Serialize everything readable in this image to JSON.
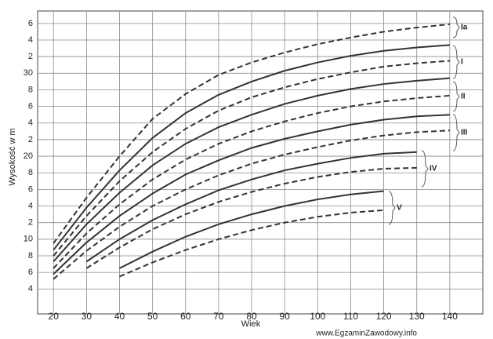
{
  "chart_data": {
    "type": "line",
    "ylabel": "Wysokość w m",
    "xlabel": "Wiek",
    "watermark": "www.EgzaminZawodowy.info",
    "annotations": [
      "Ia",
      "I",
      "II",
      "III",
      "IV",
      "V"
    ],
    "x": [
      20,
      30,
      40,
      50,
      60,
      70,
      80,
      90,
      100,
      110,
      120,
      130,
      140
    ],
    "series": [
      {
        "color": "#333333",
        "dash": true,
        "values": [
          9.5,
          15,
          20,
          24.5,
          27.5,
          29.8,
          31.3,
          32.5,
          33.5,
          34.3,
          35,
          35.5,
          35.9
        ]
      },
      {
        "color": "#333333",
        "dash": false,
        "values": [
          8.7,
          13.8,
          18.3,
          22.2,
          25.2,
          27.4,
          29,
          30.3,
          31.3,
          32.1,
          32.7,
          33.1,
          33.4
        ]
      },
      {
        "color": "#333333",
        "dash": true,
        "values": [
          8,
          12.8,
          17,
          20.5,
          23.3,
          25.5,
          27.1,
          28.3,
          29.3,
          30.1,
          30.8,
          31.2,
          31.5
        ]
      },
      {
        "color": "#333333",
        "dash": false,
        "values": [
          7.3,
          11.8,
          15.6,
          18.9,
          21.5,
          23.5,
          25,
          26.3,
          27.3,
          28.1,
          28.7,
          29.1,
          29.4
        ]
      },
      {
        "color": "#333333",
        "dash": true,
        "values": [
          6.5,
          10.7,
          14.2,
          17.2,
          19.6,
          21.5,
          23,
          24.2,
          25.2,
          26,
          26.6,
          27,
          27.3
        ]
      },
      {
        "color": "#333333",
        "dash": false,
        "values": [
          5.8,
          9.6,
          12.8,
          15.5,
          17.8,
          19.5,
          21,
          22.1,
          23,
          23.8,
          24.4,
          24.8,
          25
        ]
      },
      {
        "color": "#333333",
        "dash": true,
        "values": [
          5.2,
          8.6,
          11.5,
          14,
          16,
          17.7,
          19.1,
          20.2,
          21.1,
          21.9,
          22.5,
          22.9,
          23.1
        ]
      },
      {
        "color": "#333333",
        "dash": false,
        "values": [
          null,
          7.3,
          10,
          12.3,
          14.2,
          15.9,
          17.2,
          18.3,
          19.1,
          19.8,
          20.3,
          20.5,
          null
        ]
      },
      {
        "color": "#333333",
        "dash": true,
        "values": [
          null,
          6.5,
          9,
          11.2,
          13,
          14.5,
          15.7,
          16.7,
          17.5,
          18.1,
          18.5,
          18.6,
          null
        ]
      },
      {
        "color": "#333333",
        "dash": false,
        "values": [
          null,
          null,
          6.5,
          8.5,
          10.3,
          11.8,
          13,
          14,
          14.8,
          15.4,
          15.8,
          null,
          null
        ]
      },
      {
        "color": "#333333",
        "dash": true,
        "values": [
          null,
          null,
          5.5,
          7.2,
          8.7,
          10,
          11.1,
          12,
          12.7,
          13.2,
          13.5,
          null,
          null
        ]
      }
    ],
    "xlim": [
      15.2,
      150
    ],
    "ylim": [
      1,
      37.5
    ],
    "xticks": [
      20,
      30,
      40,
      50,
      60,
      70,
      80,
      90,
      100,
      110,
      120,
      130,
      140
    ],
    "yticks": [
      4,
      6,
      8,
      10,
      {
        "value": 12,
        "label": "2"
      },
      {
        "value": 14,
        "label": "4"
      },
      {
        "value": 16,
        "label": "6"
      },
      {
        "value": 18,
        "label": "8"
      },
      20,
      {
        "value": 22,
        "label": "2"
      },
      {
        "value": 24,
        "label": "4"
      },
      {
        "value": 26,
        "label": "6"
      },
      {
        "value": 28,
        "label": "8"
      },
      30,
      {
        "value": 32,
        "label": "2"
      },
      {
        "value": 34,
        "label": "4"
      },
      {
        "value": 36,
        "label": "6"
      }
    ],
    "grid": true
  }
}
